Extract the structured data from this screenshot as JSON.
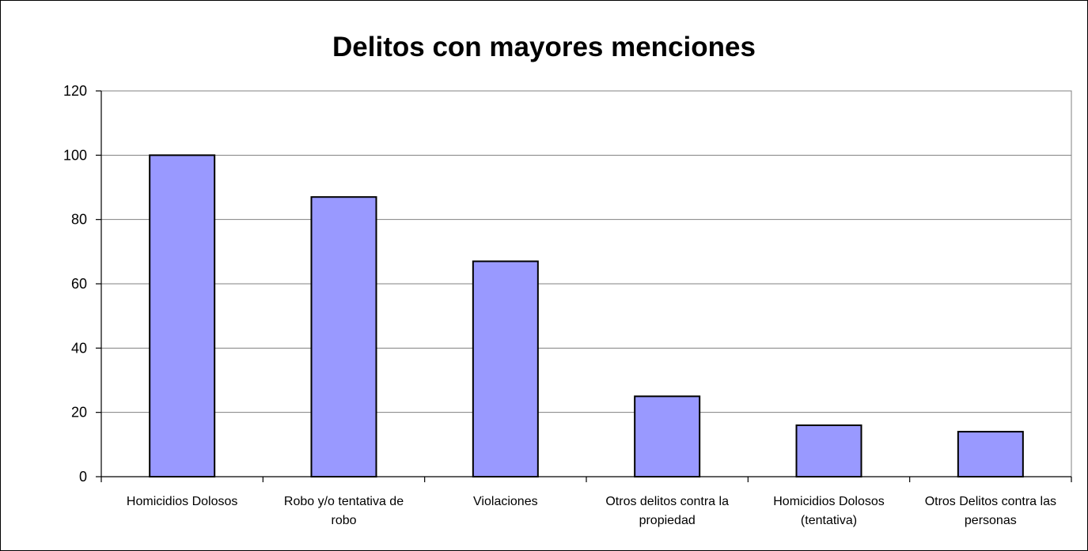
{
  "chart_data": {
    "type": "bar",
    "title": "Delitos con mayores menciones",
    "categories": [
      [
        "Homicidios Dolosos"
      ],
      [
        "Robo y/o tentativa de",
        "robo"
      ],
      [
        "Violaciones"
      ],
      [
        "Otros delitos contra la",
        "propiedad"
      ],
      [
        "Homicidios Dolosos",
        "(tentativa)"
      ],
      [
        "Otros Delitos contra las",
        "personas"
      ]
    ],
    "values": [
      100,
      87,
      67,
      25,
      16,
      14
    ],
    "ylim": [
      0,
      120
    ],
    "yticks": [
      0,
      20,
      40,
      60,
      80,
      100,
      120
    ],
    "grid": true,
    "legend": "none",
    "colors": {
      "bar": "#9999ff",
      "bar_stroke": "#000000",
      "plot_background": "#ffffff",
      "grid": "#808080"
    }
  }
}
